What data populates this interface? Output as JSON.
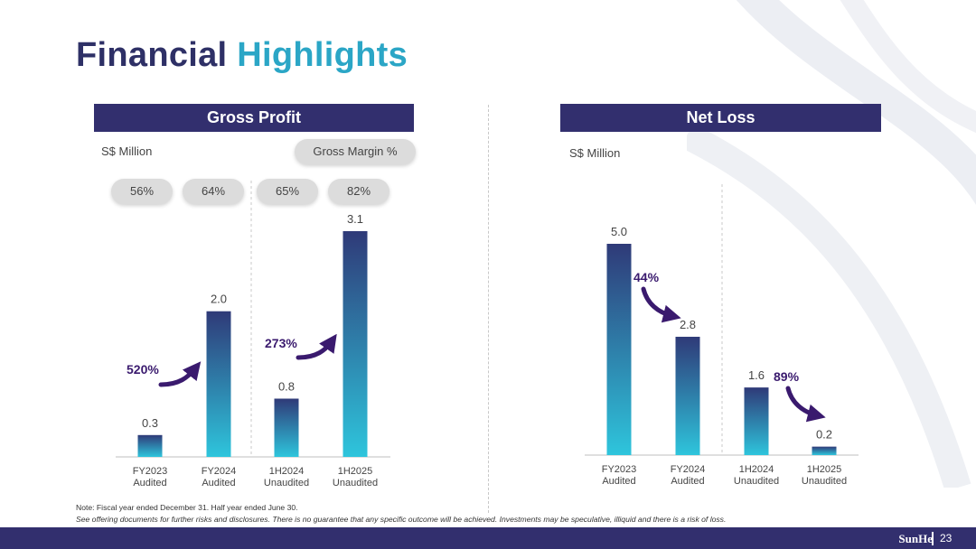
{
  "title": {
    "part1": "Financial",
    "part2": "Highlights"
  },
  "gross_profit": {
    "header": "Gross Profit",
    "unit": "S$ Million",
    "margin_label": "Gross Margin %",
    "margins": [
      "56%",
      "64%",
      "65%",
      "82%"
    ],
    "growth": [
      {
        "label": "520%"
      },
      {
        "label": "273%"
      }
    ]
  },
  "net_loss": {
    "header": "Net Loss",
    "unit": "S$ Million",
    "growth": [
      {
        "label": "44%"
      },
      {
        "label": "89%"
      }
    ]
  },
  "chart_data": [
    {
      "type": "bar",
      "title": "Gross Profit",
      "ylabel": "S$ Million",
      "categories": [
        "FY2023\nAudited",
        "FY2024\nAudited",
        "1H2024\nUnaudited",
        "1H2025\nUnaudited"
      ],
      "values": [
        0.3,
        2.0,
        0.8,
        3.1
      ],
      "value_labels": [
        "0.3",
        "2.0",
        "0.8",
        "3.1"
      ],
      "ylim": [
        0,
        3.1
      ],
      "grid": false
    },
    {
      "type": "bar",
      "title": "Net Loss",
      "ylabel": "S$ Million",
      "categories": [
        "FY2023\nAudited",
        "FY2024\nAudited",
        "1H2024\nUnaudited",
        "1H2025\nUnaudited"
      ],
      "values": [
        5.0,
        2.8,
        1.6,
        0.2
      ],
      "value_labels": [
        "5.0",
        "2.8",
        "1.6",
        "0.2"
      ],
      "ylim": [
        0,
        5.0
      ],
      "grid": false
    }
  ],
  "notes": {
    "line1": "Note: Fiscal year ended December 31. Half year ended June 30.",
    "line2": "See offering documents for further risks and disclosures. There is no guarantee that any specific outcome will be achieved. Investments may be speculative, illiquid and there is a risk of loss."
  },
  "footer": {
    "logo": "SunHe",
    "page": "23"
  },
  "colors": {
    "navy": "#322f6e",
    "title_navy": "#2e3066",
    "title_teal": "#2ba6c6",
    "bar_top": "#2f3a78",
    "bar_bottom": "#2ec5dc",
    "arrow": "#3a1a6e"
  }
}
